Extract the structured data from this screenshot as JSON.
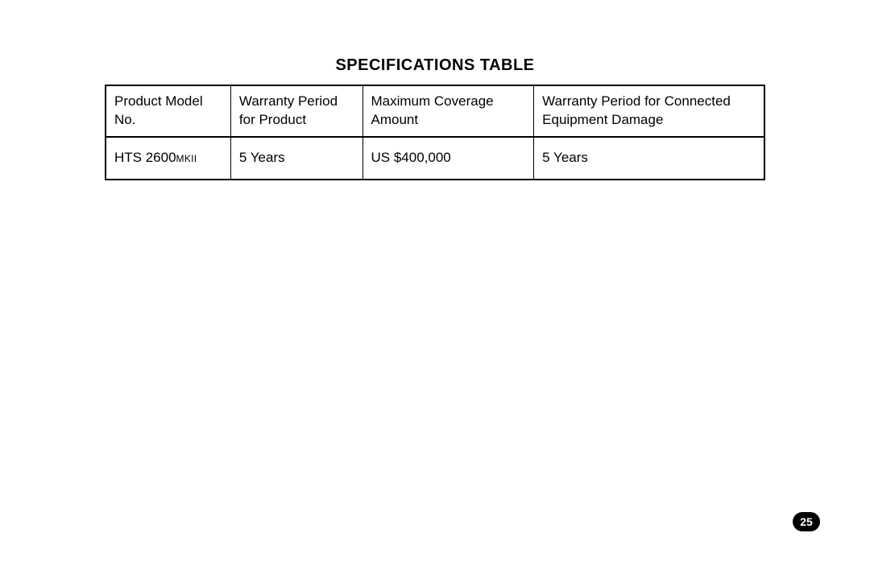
{
  "title": "SPECIFICATIONS TABLE",
  "table": {
    "columns": [
      {
        "label": "Product Model No.",
        "width_class": "col1"
      },
      {
        "label": "Warranty Period for Product",
        "width_class": "col2"
      },
      {
        "label": "Maximum Coverage Amount",
        "width_class": "col3"
      },
      {
        "label": "Warranty Period for Connected Equipment Damage",
        "width_class": "col4"
      }
    ],
    "headers": {
      "c0_line1": "Product Model No.",
      "c1_line1": "Warranty Period",
      "c1_line2": "for Product",
      "c2_line1": "Maximum Coverage",
      "c2_line2": "Amount",
      "c3_line1": "Warranty Period for Connected",
      "c3_line2": "Equipment Damage"
    },
    "rows": [
      {
        "model_prefix": "HTS 2600",
        "model_suffix": "MKII",
        "warranty_product": "5 Years",
        "max_coverage": "US $400,000",
        "warranty_connected": "5 Years"
      }
    ],
    "border_color": "#000000",
    "background_color": "#ffffff",
    "header_font_size_pt": 13,
    "cell_font_size_pt": 13
  },
  "page_number": "25",
  "colors": {
    "text": "#000000",
    "page_badge_bg": "#000000",
    "page_badge_text": "#ffffff",
    "page_bg": "#ffffff"
  },
  "typography": {
    "title_font_size_pt": 15,
    "title_font_weight": 700,
    "body_font_weight": 300,
    "font_family": "Helvetica Neue"
  }
}
